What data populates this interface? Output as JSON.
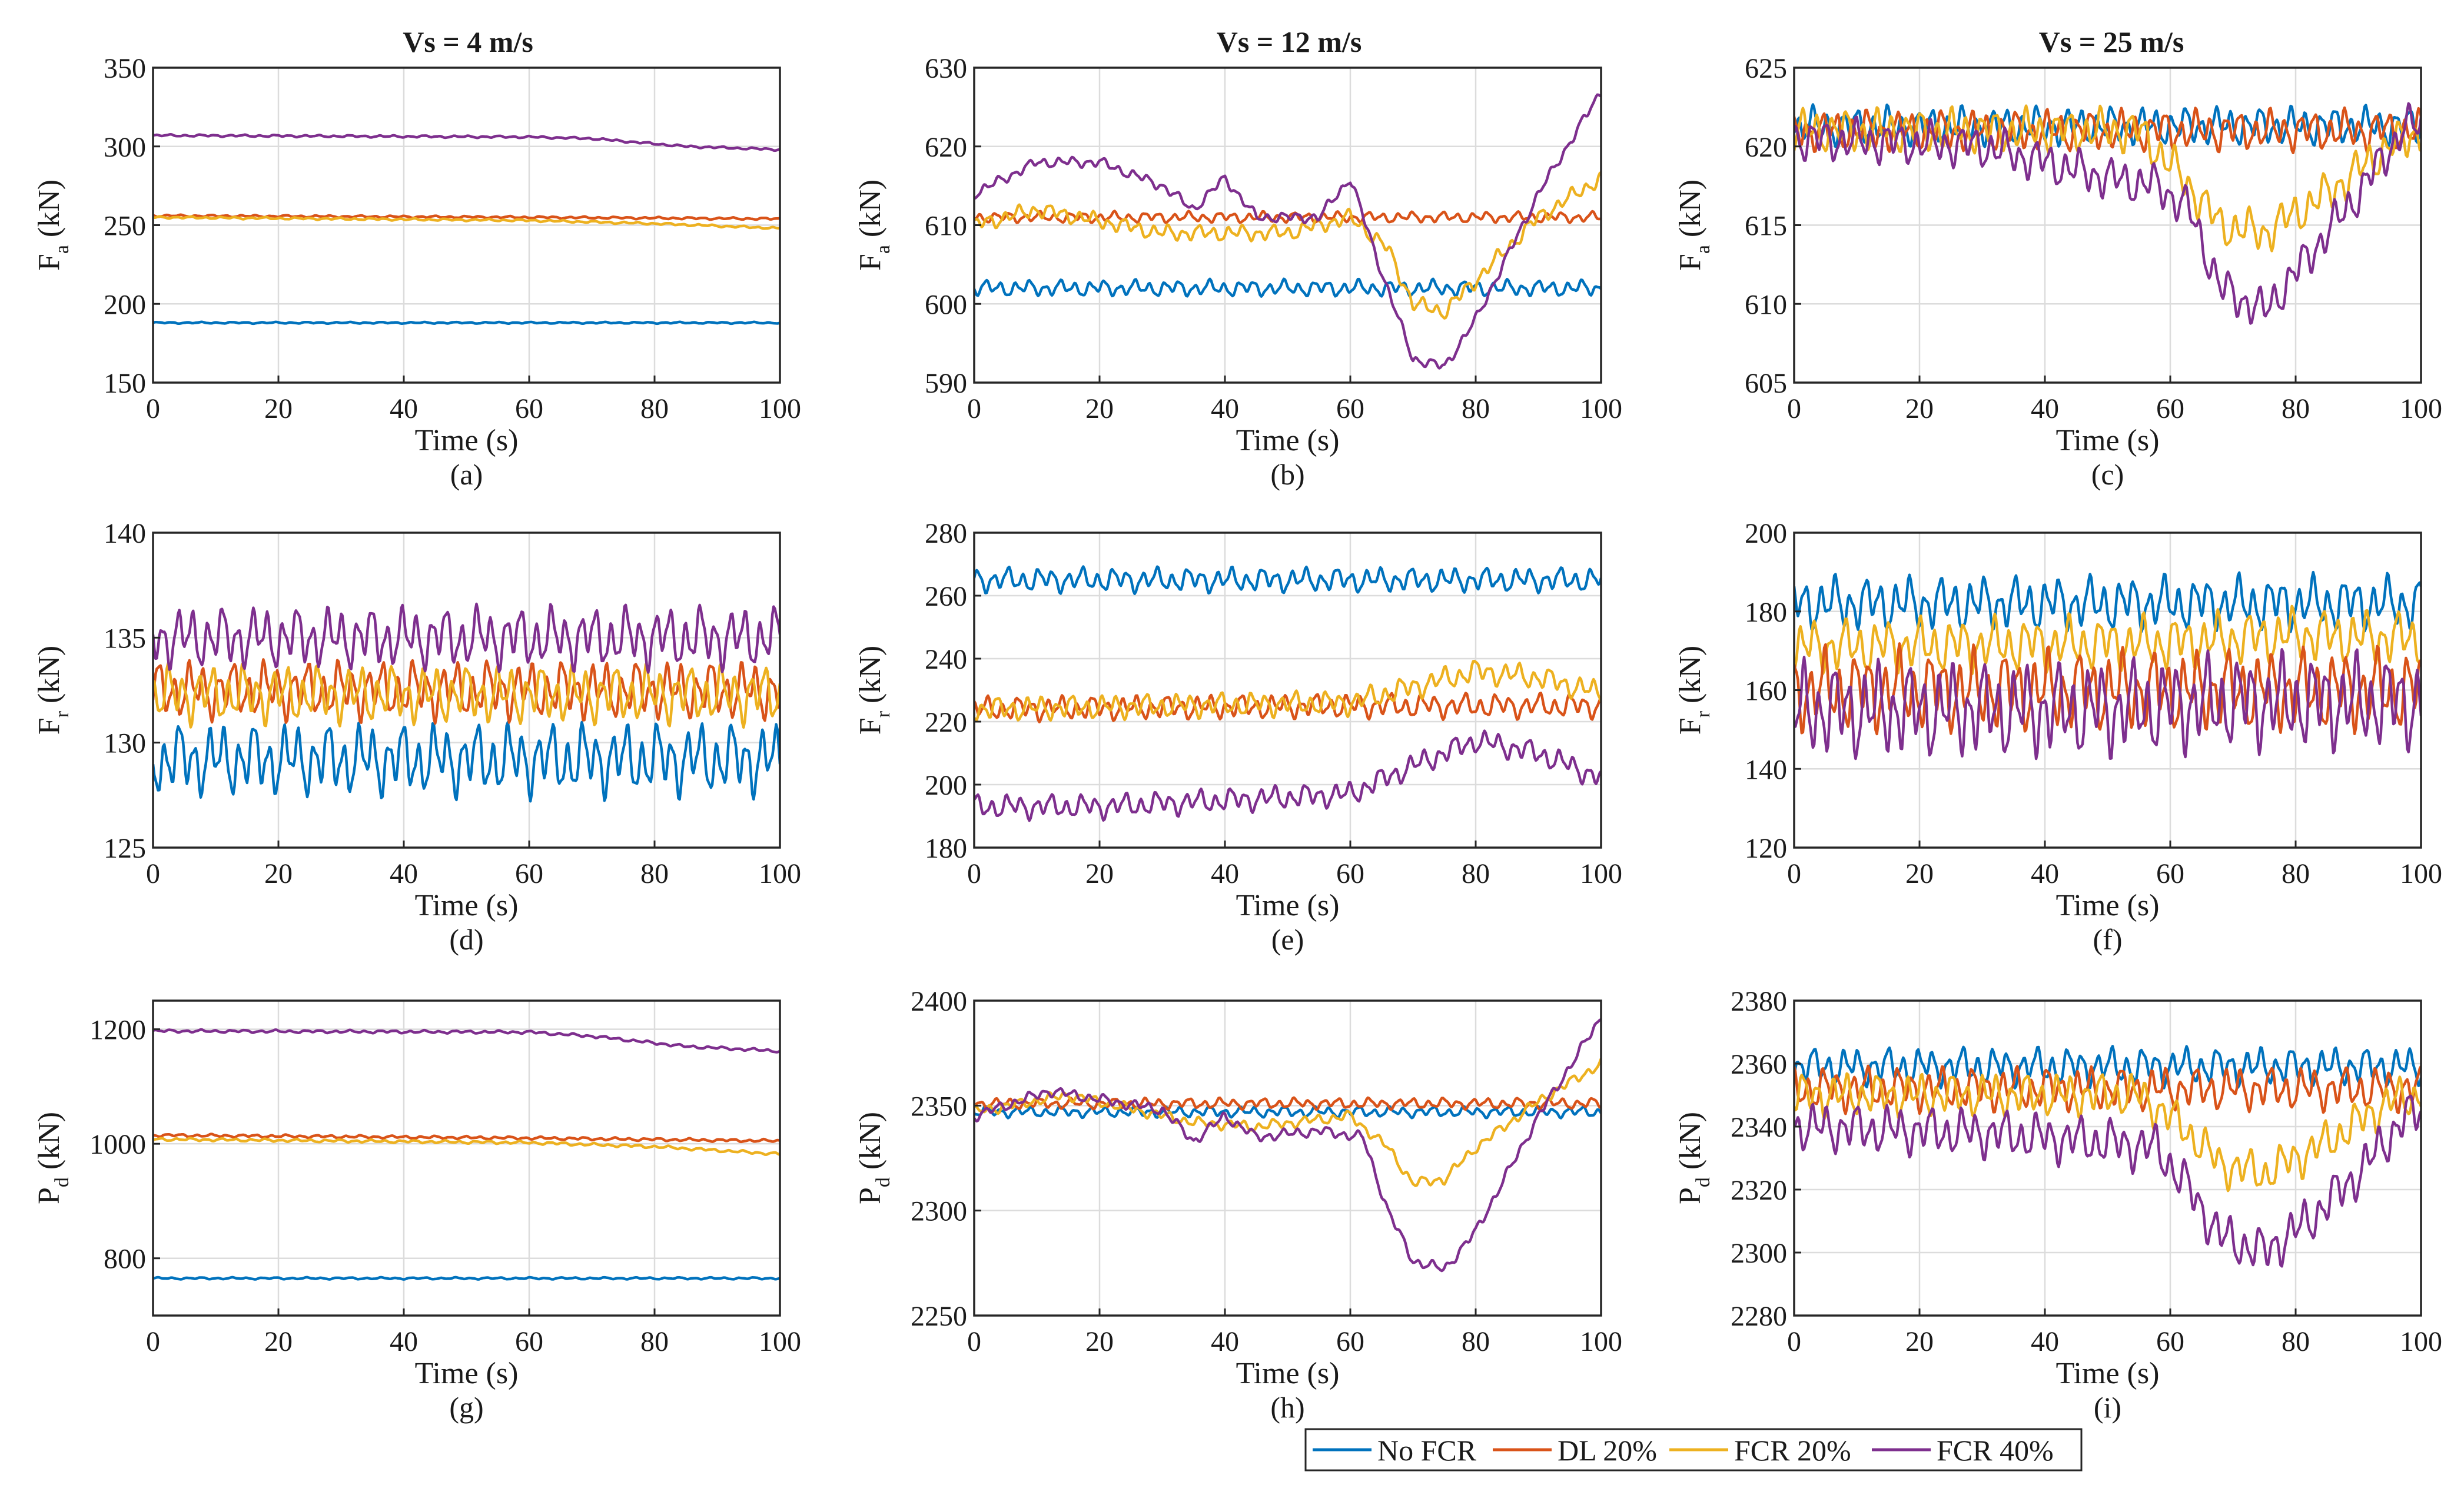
{
  "colors": {
    "no_fcr": "#0072BD",
    "dl20": "#D95319",
    "fcr20": "#EDB120",
    "fcr40": "#7E2F8E",
    "grid": "#dcdcdc",
    "axis": "#262626"
  },
  "legend": {
    "entries": [
      "No FCR",
      "DL 20%",
      "FCR 20%",
      "FCR 40%"
    ]
  },
  "columns": [
    "Vs = 4 m/s",
    "Vs = 12 m/s",
    "Vs = 25 m/s"
  ],
  "chart_data": [
    {
      "id": "a",
      "label": "(a)",
      "type": "line",
      "title": "Vs = 4 m/s",
      "xlabel": "Time (s)",
      "ylabel_main": "F",
      "ylabel_sub": "a",
      "ylabel_unit": " (kN)",
      "xlim": [
        0,
        100
      ],
      "ylim": [
        150,
        350
      ],
      "xticks": [
        0,
        20,
        40,
        60,
        80,
        100
      ],
      "yticks": [
        150,
        200,
        250,
        300,
        350
      ],
      "series": [
        {
          "name": "No FCR",
          "x": [
            0,
            100
          ],
          "values": [
            188,
            188
          ],
          "osc": 0.6
        },
        {
          "name": "DL 20%",
          "x": [
            0,
            60,
            100
          ],
          "values": [
            256,
            255,
            254
          ],
          "osc": 0.8
        },
        {
          "name": "FCR 20%",
          "x": [
            0,
            60,
            80,
            100
          ],
          "values": [
            255,
            253,
            251,
            248
          ],
          "osc": 0.8
        },
        {
          "name": "FCR 40%",
          "x": [
            0,
            60,
            70,
            85,
            100
          ],
          "values": [
            307,
            306,
            305,
            300,
            298
          ],
          "osc": 0.8
        }
      ]
    },
    {
      "id": "b",
      "label": "(b)",
      "type": "line",
      "title": "Vs = 12 m/s",
      "xlabel": "Time (s)",
      "ylabel_main": "F",
      "ylabel_sub": "a",
      "ylabel_unit": " (kN)",
      "xlim": [
        0,
        100
      ],
      "ylim": [
        590,
        630
      ],
      "xticks": [
        0,
        20,
        40,
        60,
        80,
        100
      ],
      "yticks": [
        590,
        600,
        610,
        620,
        630
      ],
      "series": [
        {
          "name": "No FCR",
          "x": [
            0,
            100
          ],
          "values": [
            602,
            602
          ],
          "osc": 1.2
        },
        {
          "name": "DL 20%",
          "x": [
            0,
            100
          ],
          "values": [
            611,
            611
          ],
          "osc": 0.8
        },
        {
          "name": "FCR 20%",
          "x": [
            0,
            10,
            30,
            50,
            60,
            66,
            70,
            75,
            80,
            90,
            100
          ],
          "values": [
            610,
            612,
            609,
            609,
            611,
            607,
            600,
            599,
            603,
            611,
            616
          ],
          "osc": 1.2
        },
        {
          "name": "FCR 40%",
          "x": [
            0,
            10,
            20,
            30,
            35,
            40,
            45,
            55,
            60,
            65,
            70,
            75,
            80,
            90,
            100
          ],
          "values": [
            614,
            618,
            618,
            615,
            612,
            616,
            611,
            611,
            616,
            604,
            593,
            592,
            598,
            614,
            627
          ],
          "osc": 0.8
        }
      ]
    },
    {
      "id": "c",
      "label": "(c)",
      "type": "line",
      "title": "Vs = 25 m/s",
      "xlabel": "Time (s)",
      "ylabel_main": "F",
      "ylabel_sub": "a",
      "ylabel_unit": " (kN)",
      "xlim": [
        0,
        100
      ],
      "ylim": [
        605,
        625
      ],
      "xticks": [
        0,
        20,
        40,
        60,
        80,
        100
      ],
      "yticks": [
        605,
        610,
        615,
        620,
        625
      ],
      "series": [
        {
          "name": "No FCR",
          "x": [
            0,
            100
          ],
          "values": [
            621.3,
            621.3
          ],
          "osc": 1.4
        },
        {
          "name": "DL 20%",
          "x": [
            0,
            100
          ],
          "values": [
            621,
            621
          ],
          "osc": 1.5
        },
        {
          "name": "FCR 20%",
          "x": [
            0,
            55,
            62,
            68,
            75,
            85,
            95,
            100
          ],
          "values": [
            621,
            621,
            618,
            615,
            614.5,
            617,
            620,
            621
          ],
          "osc": 1.6
        },
        {
          "name": "FCR 40%",
          "x": [
            0,
            30,
            50,
            58,
            63,
            68,
            75,
            82,
            90,
            97,
            100
          ],
          "values": [
            620.5,
            620,
            618,
            617.5,
            616,
            611,
            609.5,
            613,
            617,
            621,
            621.5
          ],
          "osc": 1.6
        }
      ]
    },
    {
      "id": "d",
      "label": "(d)",
      "type": "line",
      "title": "",
      "xlabel": "Time (s)",
      "ylabel_main": "F",
      "ylabel_sub": "r",
      "ylabel_unit": " (kN)",
      "xlim": [
        0,
        100
      ],
      "ylim": [
        125,
        140
      ],
      "xticks": [
        0,
        20,
        40,
        60,
        80,
        100
      ],
      "yticks": [
        125,
        130,
        135,
        140
      ],
      "series": [
        {
          "name": "No FCR",
          "x": [
            0,
            100
          ],
          "values": [
            129.2,
            129.2
          ],
          "osc": 2.0
        },
        {
          "name": "DL 20%",
          "x": [
            0,
            100
          ],
          "values": [
            132.5,
            132.5
          ],
          "osc": 1.6
        },
        {
          "name": "FCR 20%",
          "x": [
            0,
            100
          ],
          "values": [
            132.3,
            132.3
          ],
          "osc": 1.6
        },
        {
          "name": "FCR 40%",
          "x": [
            0,
            100
          ],
          "values": [
            135,
            135
          ],
          "osc": 1.7
        }
      ]
    },
    {
      "id": "e",
      "label": "(e)",
      "type": "line",
      "title": "",
      "xlabel": "Time (s)",
      "ylabel_main": "F",
      "ylabel_sub": "r",
      "ylabel_unit": " (kN)",
      "xlim": [
        0,
        100
      ],
      "ylim": [
        180,
        280
      ],
      "xticks": [
        0,
        20,
        40,
        60,
        80,
        100
      ],
      "yticks": [
        180,
        200,
        220,
        240,
        260,
        280
      ],
      "series": [
        {
          "name": "No FCR",
          "x": [
            0,
            100
          ],
          "values": [
            265,
            265
          ],
          "osc": 4.5
        },
        {
          "name": "DL 20%",
          "x": [
            0,
            60,
            70,
            100
          ],
          "values": [
            224,
            225,
            225,
            225
          ],
          "osc": 4.5
        },
        {
          "name": "FCR 20%",
          "x": [
            0,
            60,
            70,
            80,
            90,
            100
          ],
          "values": [
            224,
            226,
            231,
            236,
            234,
            229
          ],
          "osc": 4.5
        },
        {
          "name": "FCR 40%",
          "x": [
            0,
            20,
            40,
            60,
            70,
            80,
            90,
            100
          ],
          "values": [
            193,
            193,
            195,
            197,
            206,
            214,
            210,
            202
          ],
          "osc": 4.5
        }
      ]
    },
    {
      "id": "f",
      "label": "(f)",
      "type": "line",
      "title": "",
      "xlabel": "Time (s)",
      "ylabel_main": "F",
      "ylabel_sub": "r",
      "ylabel_unit": " (kN)",
      "xlim": [
        0,
        100
      ],
      "ylim": [
        120,
        200
      ],
      "xticks": [
        0,
        20,
        40,
        60,
        80,
        100
      ],
      "yticks": [
        120,
        140,
        160,
        180,
        200
      ],
      "series": [
        {
          "name": "No FCR",
          "x": [
            0,
            100
          ],
          "values": [
            182,
            182
          ],
          "osc": 8
        },
        {
          "name": "FCR 20%",
          "x": [
            0,
            60,
            80,
            100
          ],
          "values": [
            171,
            172,
            174,
            173
          ],
          "osc": 8
        },
        {
          "name": "DL 20%",
          "x": [
            0,
            50,
            100
          ],
          "values": [
            160,
            160,
            160
          ],
          "osc": 12
        },
        {
          "name": "FCR 40%",
          "x": [
            0,
            50,
            70,
            100
          ],
          "values": [
            155,
            155,
            157,
            157
          ],
          "osc": 14
        }
      ]
    },
    {
      "id": "g",
      "label": "(g)",
      "type": "line",
      "title": "",
      "xlabel": "Time (s)",
      "ylabel_main": "P",
      "ylabel_sub": "d",
      "ylabel_unit": " (kN)",
      "xlim": [
        0,
        100
      ],
      "ylim": [
        700,
        1250
      ],
      "xticks": [
        0,
        20,
        40,
        60,
        80,
        100
      ],
      "yticks": [
        800,
        1000,
        1200
      ],
      "series": [
        {
          "name": "No FCR",
          "x": [
            0,
            100
          ],
          "values": [
            765,
            765
          ],
          "osc": 2
        },
        {
          "name": "DL 20%",
          "x": [
            0,
            60,
            100
          ],
          "values": [
            1015,
            1010,
            1005
          ],
          "osc": 3
        },
        {
          "name": "FCR 20%",
          "x": [
            0,
            60,
            80,
            100
          ],
          "values": [
            1008,
            1002,
            995,
            982
          ],
          "osc": 3
        },
        {
          "name": "FCR 40%",
          "x": [
            0,
            60,
            70,
            85,
            100
          ],
          "values": [
            1197,
            1195,
            1188,
            1170,
            1162
          ],
          "osc": 3
        }
      ]
    },
    {
      "id": "h",
      "label": "(h)",
      "type": "line",
      "title": "",
      "xlabel": "Time (s)",
      "ylabel_main": "P",
      "ylabel_sub": "d",
      "ylabel_unit": " (kN)",
      "xlim": [
        0,
        100
      ],
      "ylim": [
        2250,
        2400
      ],
      "xticks": [
        0,
        20,
        40,
        60,
        80,
        100
      ],
      "yticks": [
        2250,
        2300,
        2350,
        2400
      ],
      "series": [
        {
          "name": "No FCR",
          "x": [
            0,
            100
          ],
          "values": [
            2347,
            2347
          ],
          "osc": 3
        },
        {
          "name": "DL 20%",
          "x": [
            0,
            100
          ],
          "values": [
            2351,
            2351
          ],
          "osc": 3
        },
        {
          "name": "FCR 20%",
          "x": [
            0,
            15,
            35,
            45,
            60,
            66,
            70,
            75,
            80,
            90,
            100
          ],
          "values": [
            2347,
            2355,
            2342,
            2340,
            2345,
            2330,
            2313,
            2315,
            2330,
            2352,
            2370
          ],
          "osc": 3
        },
        {
          "name": "FCR 40%",
          "x": [
            0,
            12,
            30,
            35,
            40,
            45,
            55,
            62,
            66,
            70,
            75,
            80,
            90,
            100
          ],
          "values": [
            2345,
            2357,
            2348,
            2333,
            2345,
            2335,
            2338,
            2335,
            2300,
            2276,
            2272,
            2290,
            2345,
            2392
          ],
          "osc": 3
        }
      ]
    },
    {
      "id": "i",
      "label": "(i)",
      "type": "line",
      "title": "",
      "xlabel": "Time (s)",
      "ylabel_main": "P",
      "ylabel_sub": "d",
      "ylabel_unit": " (kN)",
      "xlim": [
        0,
        100
      ],
      "ylim": [
        2280,
        2380
      ],
      "xticks": [
        0,
        20,
        40,
        60,
        80,
        100
      ],
      "yticks": [
        2280,
        2300,
        2320,
        2340,
        2360,
        2380
      ],
      "series": [
        {
          "name": "No FCR",
          "x": [
            0,
            100
          ],
          "values": [
            2359,
            2359
          ],
          "osc": 7
        },
        {
          "name": "DL 20%",
          "x": [
            0,
            100
          ],
          "values": [
            2352,
            2352
          ],
          "osc": 8
        },
        {
          "name": "FCR 20%",
          "x": [
            0,
            55,
            62,
            68,
            75,
            85,
            95,
            100
          ],
          "values": [
            2350,
            2350,
            2340,
            2328,
            2325,
            2335,
            2348,
            2350
          ],
          "osc": 8
        },
        {
          "name": "FCR 40%",
          "x": [
            0,
            30,
            50,
            58,
            63,
            68,
            75,
            82,
            90,
            97,
            100
          ],
          "values": [
            2340,
            2338,
            2335,
            2333,
            2320,
            2305,
            2300,
            2310,
            2325,
            2342,
            2345
          ],
          "osc": 9
        }
      ]
    }
  ]
}
